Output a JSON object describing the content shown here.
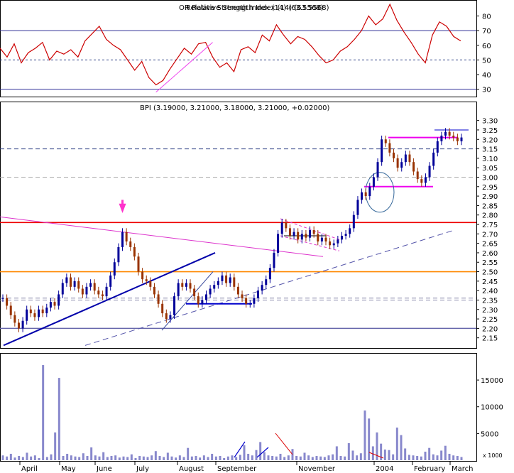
{
  "chart_data": [
    {
      "type": "line",
      "title": "OR Relative Strength Index (14) (63.5568)",
      "title_overlap_text": "Relative Strength Index (14) (63.5568)",
      "ylim": [
        25,
        88
      ],
      "y_ticks": [
        30,
        40,
        50,
        60,
        70,
        80
      ],
      "reference_lines": {
        "upper": 70,
        "lower": 30,
        "mid_dashed": 50
      },
      "series": [
        {
          "x": [
            0,
            10,
            20,
            30,
            40,
            50,
            60,
            70,
            80,
            90,
            100,
            110,
            120,
            130,
            140,
            150,
            160,
            170,
            180,
            190,
            200,
            210,
            220,
            230,
            240,
            250,
            260,
            270,
            280,
            290,
            300,
            310,
            320,
            330,
            340,
            350,
            360,
            370,
            380,
            390,
            400,
            410,
            420,
            430,
            440,
            450,
            460,
            470,
            480,
            490,
            500,
            510,
            520,
            530,
            540,
            550,
            560,
            570,
            580,
            590,
            600,
            610,
            620,
            630,
            640,
            650
          ],
          "values": [
            58,
            52,
            61,
            48,
            55,
            58,
            62,
            50,
            56,
            54,
            57,
            52,
            63,
            68,
            73,
            64,
            60,
            57,
            50,
            43,
            49,
            38,
            33,
            36,
            44,
            51,
            58,
            54,
            61,
            62,
            52,
            45,
            48,
            42,
            57,
            59,
            55,
            67,
            63,
            74,
            67,
            61,
            66,
            64,
            59,
            53,
            48,
            50,
            56,
            59,
            64,
            70,
            80,
            74,
            78,
            88,
            77,
            69,
            62,
            54,
            48,
            67,
            76,
            73,
            66,
            63
          ],
          "color": "#cc0000"
        }
      ],
      "trend_segment": {
        "x": [
          220,
          300
        ],
        "y": [
          28,
          62
        ],
        "color": "#ee44ee"
      }
    },
    {
      "type": "candlestick",
      "title": "BPI (3.19000, 3.21000, 3.18000, 3.21000, +0.02000)",
      "ylim": [
        2.1,
        3.34
      ],
      "y_ticks": [
        "3.30",
        "3.25",
        "3.20",
        "3.15",
        "3.10",
        "3.05",
        "3.00",
        "2.95",
        "2.90",
        "2.85",
        "2.80",
        "2.75",
        "2.70",
        "2.65",
        "2.60",
        "2.55",
        "2.50",
        "2.45",
        "2.40",
        "2.35",
        "2.30",
        "2.25",
        "2.20",
        "2.15"
      ],
      "closes": [
        2.36,
        2.32,
        2.27,
        2.23,
        2.2,
        2.24,
        2.3,
        2.28,
        2.26,
        2.3,
        2.28,
        2.31,
        2.34,
        2.32,
        2.38,
        2.44,
        2.47,
        2.42,
        2.45,
        2.41,
        2.38,
        2.42,
        2.44,
        2.4,
        2.38,
        2.37,
        2.42,
        2.48,
        2.55,
        2.63,
        2.71,
        2.66,
        2.63,
        2.58,
        2.5,
        2.46,
        2.45,
        2.42,
        2.38,
        2.33,
        2.28,
        2.25,
        2.27,
        2.37,
        2.44,
        2.42,
        2.44,
        2.41,
        2.37,
        2.33,
        2.35,
        2.38,
        2.41,
        2.43,
        2.45,
        2.48,
        2.44,
        2.47,
        2.42,
        2.38,
        2.36,
        2.33,
        2.33,
        2.36,
        2.4,
        2.43,
        2.46,
        2.52,
        2.6,
        2.7,
        2.76,
        2.73,
        2.69,
        2.71,
        2.67,
        2.7,
        2.68,
        2.72,
        2.7,
        2.66,
        2.68,
        2.66,
        2.64,
        2.65,
        2.67,
        2.69,
        2.7,
        2.73,
        2.8,
        2.88,
        2.92,
        2.9,
        2.95,
        3.0,
        3.08,
        3.2,
        3.18,
        3.13,
        3.1,
        3.05,
        3.08,
        3.12,
        3.08,
        3.03,
        2.99,
        2.97,
        3.0,
        3.06,
        3.13,
        3.19,
        3.22,
        3.24,
        3.22,
        3.21,
        3.19,
        3.21
      ],
      "horizontal_lines": [
        {
          "value": 2.76,
          "color": "#ee0000",
          "style": "solid"
        },
        {
          "value": 2.5,
          "color": "#ff8800",
          "style": "solid"
        },
        {
          "value": 2.2,
          "color": "#6666aa",
          "style": "solid"
        },
        {
          "value": 3.15,
          "color": "#334488",
          "style": "dashed"
        },
        {
          "value": 3.0,
          "color": "#aaaaaa",
          "style": "dashed"
        },
        {
          "value": 2.36,
          "color": "#8888aa",
          "style": "dashed"
        },
        {
          "value": 2.35,
          "color": "#8888aa",
          "style": "dashed"
        }
      ],
      "marker_color": "#ff33cc",
      "up_color": "#000099",
      "down_color": "#993300"
    },
    {
      "type": "bar",
      "title": "",
      "ylim": [
        0,
        19000
      ],
      "y_ticks": [
        "15000",
        "10000",
        "5000"
      ],
      "unit_label": "x 1000",
      "color": "#8888cc",
      "values": [
        900,
        700,
        1200,
        500,
        800,
        600,
        1400,
        700,
        900,
        400,
        17800,
        600,
        1100,
        5200,
        15400,
        800,
        1200,
        900,
        700,
        600,
        1300,
        800,
        2400,
        900,
        700,
        1500,
        600,
        800,
        900,
        500,
        700,
        600,
        1100,
        400,
        800,
        700,
        600,
        900,
        1700,
        800,
        600,
        1400,
        700,
        500,
        900,
        600,
        2300,
        700,
        800,
        500,
        900,
        600,
        1200,
        700,
        800,
        400,
        700,
        900,
        600,
        1000,
        2800,
        1200,
        900,
        1900,
        3400,
        1500,
        900,
        800,
        700,
        1200,
        600,
        900,
        2100,
        800,
        700,
        1400,
        900,
        600,
        800,
        700,
        600,
        900,
        1100,
        2600,
        800,
        700,
        3200,
        1800,
        900,
        1300,
        9300,
        7800,
        2600,
        5200,
        3100,
        2000,
        1900,
        1100,
        6100,
        4700,
        2200,
        1000,
        900,
        800,
        700,
        1600,
        2300,
        1100,
        900,
        1800,
        2700,
        1200,
        900,
        800,
        600
      ],
      "annotations": [
        "blue up-line",
        "blue up-line",
        "red down-line",
        "red down-line"
      ]
    }
  ],
  "x_axis": {
    "labels": [
      "April",
      "May",
      "June",
      "July",
      "August",
      "September",
      "November",
      "2004",
      "February",
      "March"
    ]
  }
}
